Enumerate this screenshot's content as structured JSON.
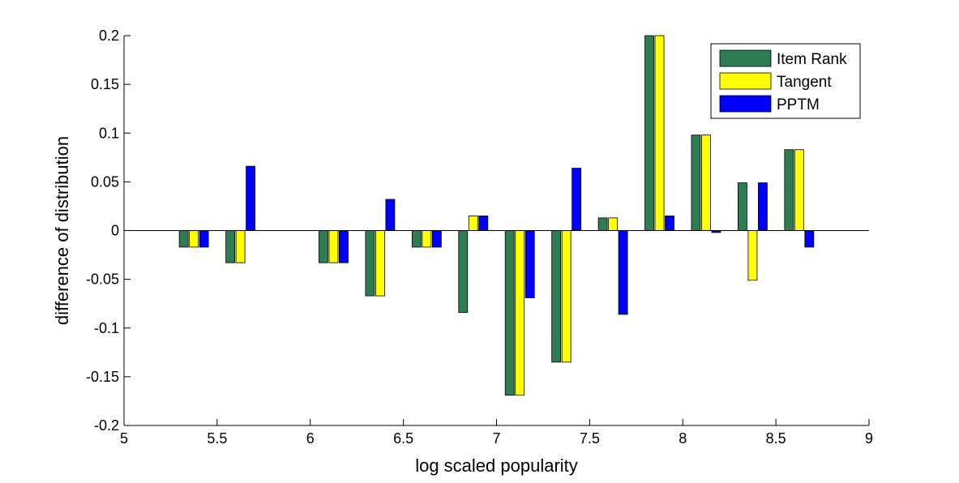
{
  "chart_data": {
    "type": "bar",
    "title": "",
    "xlabel": "log scaled popularity",
    "ylabel": "difference of distribution",
    "xlim": [
      5,
      9
    ],
    "ylim": [
      -0.2,
      0.2
    ],
    "x_ticks": [
      "5",
      "5.5",
      "6",
      "6.5",
      "7",
      "7.5",
      "8",
      "8.5",
      "9"
    ],
    "y_ticks": [
      "-0.2",
      "-0.15",
      "-0.1",
      "-0.05",
      "0",
      "0.05",
      "0.1",
      "0.15",
      "0.2"
    ],
    "x": [
      5.375,
      5.625,
      6.125,
      6.375,
      6.625,
      6.875,
      7.125,
      7.375,
      7.625,
      7.875,
      8.125,
      8.375,
      8.625
    ],
    "series": [
      {
        "name": "Item Rank",
        "color": "#2e7d52",
        "values": [
          -0.017,
          -0.033,
          -0.033,
          -0.067,
          -0.017,
          -0.084,
          -0.169,
          -0.135,
          0.013,
          0.2,
          0.098,
          0.049,
          0.083
        ]
      },
      {
        "name": "Tangent",
        "color": "#ffff00",
        "values": [
          -0.017,
          -0.033,
          -0.033,
          -0.067,
          -0.017,
          0.015,
          -0.169,
          -0.135,
          0.013,
          0.2,
          0.098,
          -0.051,
          0.083
        ]
      },
      {
        "name": "PPTM",
        "color": "#0000ff",
        "values": [
          -0.017,
          0.066,
          -0.033,
          0.032,
          -0.017,
          0.015,
          -0.069,
          0.064,
          -0.086,
          0.015,
          -0.002,
          0.049,
          -0.017
        ]
      }
    ],
    "legend": {
      "position": "top-right"
    },
    "grid": false
  }
}
